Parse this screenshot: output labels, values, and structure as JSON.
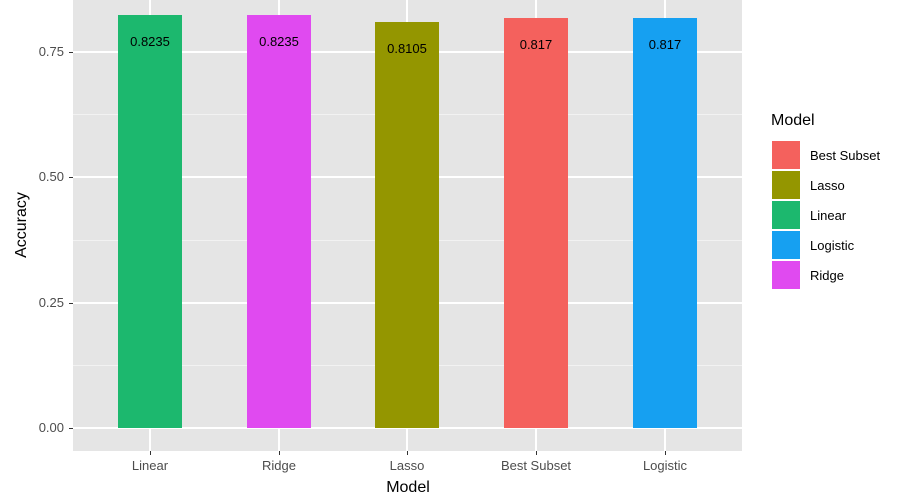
{
  "chart_data": {
    "type": "bar",
    "title": "",
    "xlabel": "Model",
    "ylabel": "Accuracy",
    "categories": [
      "Linear",
      "Ridge",
      "Lasso",
      "Best Subset",
      "Logistic"
    ],
    "values": [
      0.8235,
      0.8235,
      0.8105,
      0.817,
      0.817
    ],
    "value_labels": [
      "0.8235",
      "0.8235",
      "0.8105",
      "0.817",
      "0.817"
    ],
    "colors": [
      "#1cb86e",
      "#e04af0",
      "#949600",
      "#f4615d",
      "#16a0f1"
    ],
    "ylim": [
      0,
      0.85
    ],
    "yticks": [
      "0.00",
      "0.25",
      "0.50",
      "0.75"
    ],
    "ytick_values": [
      0,
      0.25,
      0.5,
      0.75
    ],
    "grid": true,
    "legend": {
      "title": "Model",
      "position": "right",
      "entries": [
        {
          "label": "Best Subset",
          "color": "#f4615d"
        },
        {
          "label": "Lasso",
          "color": "#949600"
        },
        {
          "label": "Linear",
          "color": "#1cb86e"
        },
        {
          "label": "Logistic",
          "color": "#16a0f1"
        },
        {
          "label": "Ridge",
          "color": "#e04af0"
        }
      ]
    }
  }
}
